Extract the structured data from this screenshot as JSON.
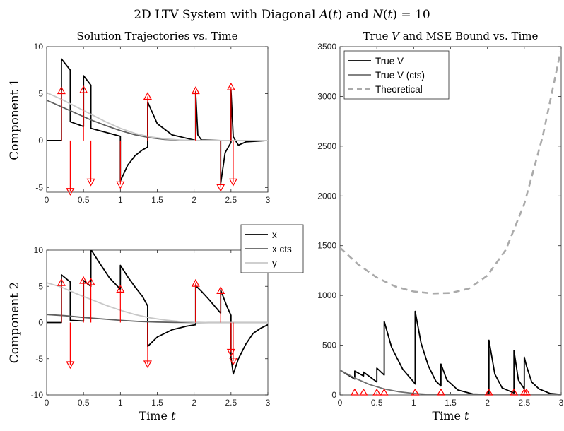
{
  "figure_title": "2D LTV System with Diagonal A(t) and N(t) = 10",
  "colors": {
    "x": "#000000",
    "x_cts": "#606060",
    "y": "#c8c8c8",
    "impulse": "#ff0000",
    "theoretical": "#aaaaaa",
    "true_v": "#000000",
    "true_v_cts": "#707070"
  },
  "chart_data": [
    {
      "id": "c1",
      "type": "line",
      "title": "Solution Trajectories vs. Time",
      "xlabel": "",
      "ylabel": "Component 1",
      "xlim": [
        0,
        3
      ],
      "ylim": [
        -5.5,
        10
      ],
      "xticks": [
        "0",
        "0.5",
        "1",
        "1.5",
        "2",
        "2.5",
        "3"
      ],
      "yticks": [
        "-5",
        "0",
        "5",
        "10"
      ],
      "grid": false,
      "series": [
        {
          "key": "x",
          "style": "x",
          "points": [
            [
              0,
              0
            ],
            [
              0.2,
              0
            ],
            [
              0.2,
              8.7
            ],
            [
              0.32,
              7.5
            ],
            [
              0.32,
              2.0
            ],
            [
              0.5,
              1.5
            ],
            [
              0.5,
              6.9
            ],
            [
              0.6,
              5.9
            ],
            [
              0.6,
              1.3
            ],
            [
              1.0,
              0.45
            ],
            [
              1.0,
              -4.3
            ],
            [
              1.1,
              -2.6
            ],
            [
              1.2,
              -1.6
            ],
            [
              1.3,
              -1.0
            ],
            [
              1.37,
              -0.7
            ],
            [
              1.37,
              4.1
            ],
            [
              1.5,
              1.8
            ],
            [
              1.7,
              0.6
            ],
            [
              2.0,
              0.05
            ],
            [
              2.02,
              0
            ],
            [
              2.02,
              5.2
            ],
            [
              2.05,
              0.6
            ],
            [
              2.1,
              0.05
            ],
            [
              2.36,
              0
            ],
            [
              2.36,
              -4.6
            ],
            [
              2.42,
              -1.3
            ],
            [
              2.5,
              -0.2
            ],
            [
              2.5,
              5.4
            ],
            [
              2.53,
              0.4
            ],
            [
              2.6,
              -0.5
            ],
            [
              2.7,
              -0.15
            ],
            [
              3.0,
              0
            ]
          ]
        },
        {
          "key": "x_cts",
          "style": "x_cts",
          "points": [
            [
              0,
              4.3
            ],
            [
              0.2,
              3.6
            ],
            [
              0.4,
              2.9
            ],
            [
              0.6,
              2.2
            ],
            [
              0.8,
              1.6
            ],
            [
              1.0,
              1.05
            ],
            [
              1.2,
              0.6
            ],
            [
              1.4,
              0.3
            ],
            [
              1.6,
              0.12
            ],
            [
              1.8,
              0.04
            ],
            [
              2.0,
              0
            ],
            [
              3.0,
              0
            ]
          ]
        },
        {
          "key": "y",
          "style": "y",
          "points": [
            [
              0,
              5.1
            ],
            [
              0.2,
              4.4
            ],
            [
              0.4,
              3.6
            ],
            [
              0.6,
              2.8
            ],
            [
              0.8,
              2.0
            ],
            [
              1.0,
              1.3
            ],
            [
              1.2,
              0.75
            ],
            [
              1.4,
              0.4
            ],
            [
              1.6,
              0.18
            ],
            [
              1.8,
              0.06
            ],
            [
              2.0,
              0
            ],
            [
              3.0,
              0
            ]
          ]
        }
      ],
      "impulses": [
        {
          "t": 0.2,
          "v": 5.3
        },
        {
          "t": 0.32,
          "v": -5.4
        },
        {
          "t": 0.5,
          "v": 5.4
        },
        {
          "t": 0.6,
          "v": -4.4
        },
        {
          "t": 1.0,
          "v": -4.7
        },
        {
          "t": 1.37,
          "v": 4.7
        },
        {
          "t": 2.02,
          "v": 5.3
        },
        {
          "t": 2.36,
          "v": -5.0
        },
        {
          "t": 2.5,
          "v": 5.7
        },
        {
          "t": 2.53,
          "v": -4.4
        }
      ]
    },
    {
      "id": "c2",
      "type": "line",
      "title": "",
      "xlabel": "Time t",
      "ylabel": "Component 2",
      "xlim": [
        0,
        3
      ],
      "ylim": [
        -10,
        10
      ],
      "xticks": [
        "0",
        "0.5",
        "1",
        "1.5",
        "2",
        "2.5",
        "3"
      ],
      "yticks": [
        "-10",
        "-5",
        "0",
        "5",
        "10"
      ],
      "grid": false,
      "legend": {
        "placement": "top-right",
        "entries": [
          {
            "label": "x",
            "style": "x"
          },
          {
            "label": "x cts",
            "style": "x_cts"
          },
          {
            "label": "y",
            "style": "y"
          }
        ]
      },
      "series": [
        {
          "key": "x",
          "style": "x",
          "points": [
            [
              0,
              0
            ],
            [
              0.2,
              0
            ],
            [
              0.2,
              6.6
            ],
            [
              0.32,
              5.6
            ],
            [
              0.32,
              0.3
            ],
            [
              0.5,
              0.2
            ],
            [
              0.5,
              5.8
            ],
            [
              0.6,
              5.0
            ],
            [
              0.6,
              10.1
            ],
            [
              0.7,
              8.5
            ],
            [
              0.85,
              6.2
            ],
            [
              1.0,
              4.6
            ],
            [
              1.0,
              7.9
            ],
            [
              1.1,
              6.3
            ],
            [
              1.2,
              4.9
            ],
            [
              1.3,
              3.6
            ],
            [
              1.37,
              2.3
            ],
            [
              1.37,
              -3.3
            ],
            [
              1.5,
              -2.0
            ],
            [
              1.7,
              -1.0
            ],
            [
              1.9,
              -0.5
            ],
            [
              2.02,
              -0.3
            ],
            [
              2.02,
              5.1
            ],
            [
              2.1,
              4.3
            ],
            [
              2.2,
              3.2
            ],
            [
              2.3,
              2.0
            ],
            [
              2.36,
              1.3
            ],
            [
              2.36,
              4.5
            ],
            [
              2.45,
              2.1
            ],
            [
              2.5,
              1.0
            ],
            [
              2.5,
              -4.8
            ],
            [
              2.53,
              -7.1
            ],
            [
              2.6,
              -5.0
            ],
            [
              2.7,
              -3.0
            ],
            [
              2.8,
              -1.5
            ],
            [
              2.9,
              -0.8
            ],
            [
              3.0,
              -0.3
            ]
          ]
        },
        {
          "key": "x_cts",
          "style": "x_cts",
          "points": [
            [
              0,
              1.1
            ],
            [
              0.25,
              0.95
            ],
            [
              0.5,
              0.7
            ],
            [
              0.75,
              0.5
            ],
            [
              1.0,
              0.3
            ],
            [
              1.25,
              0.15
            ],
            [
              1.5,
              0.06
            ],
            [
              1.75,
              0.02
            ],
            [
              2.0,
              0
            ],
            [
              3.0,
              0
            ]
          ]
        },
        {
          "key": "y",
          "style": "y",
          "points": [
            [
              0,
              5.5
            ],
            [
              0.2,
              4.9
            ],
            [
              0.4,
              4.0
            ],
            [
              0.6,
              3.2
            ],
            [
              0.8,
              2.4
            ],
            [
              1.0,
              1.7
            ],
            [
              1.2,
              1.1
            ],
            [
              1.4,
              0.65
            ],
            [
              1.6,
              0.35
            ],
            [
              1.8,
              0.15
            ],
            [
              2.0,
              0.05
            ],
            [
              2.2,
              0
            ],
            [
              3.0,
              0
            ]
          ]
        }
      ],
      "impulses": [
        {
          "t": 0.2,
          "v": 5.5
        },
        {
          "t": 0.32,
          "v": -5.8
        },
        {
          "t": 0.5,
          "v": 5.8
        },
        {
          "t": 0.6,
          "v": 5.6
        },
        {
          "t": 1.0,
          "v": 4.6
        },
        {
          "t": 1.37,
          "v": -5.7
        },
        {
          "t": 2.02,
          "v": 5.4
        },
        {
          "t": 2.36,
          "v": 4.4
        },
        {
          "t": 2.5,
          "v": -4.1
        },
        {
          "t": 2.53,
          "v": -5.3
        }
      ]
    },
    {
      "id": "c3",
      "type": "line",
      "title": "True V and MSE Bound vs. Time",
      "xlabel": "Time t",
      "ylabel": "",
      "xlim": [
        0,
        3
      ],
      "ylim": [
        0,
        3500
      ],
      "xticks": [
        "0",
        "0.5",
        "1",
        "1.5",
        "2",
        "2.5",
        "3"
      ],
      "yticks": [
        "0",
        "500",
        "1000",
        "1500",
        "2000",
        "2500",
        "3000",
        "3500"
      ],
      "grid": false,
      "legend": {
        "placement": "top-left",
        "entries": [
          {
            "label": "True V",
            "style": "true_v"
          },
          {
            "label": "True V (cts)",
            "style": "true_v_cts"
          },
          {
            "label": "Theoretical",
            "style": "theoretical"
          }
        ]
      },
      "series": [
        {
          "key": "theoretical",
          "style": "theoretical",
          "points": [
            [
              0,
              1480
            ],
            [
              0.25,
              1310
            ],
            [
              0.5,
              1180
            ],
            [
              0.75,
              1090
            ],
            [
              1.0,
              1040
            ],
            [
              1.25,
              1020
            ],
            [
              1.5,
              1025
            ],
            [
              1.75,
              1070
            ],
            [
              2.0,
              1200
            ],
            [
              2.25,
              1460
            ],
            [
              2.5,
              1920
            ],
            [
              2.75,
              2600
            ],
            [
              3.0,
              3480
            ]
          ]
        },
        {
          "key": "true_v",
          "style": "true_v",
          "points": [
            [
              0,
              250
            ],
            [
              0.2,
              160
            ],
            [
              0.2,
              240
            ],
            [
              0.32,
              190
            ],
            [
              0.32,
              230
            ],
            [
              0.5,
              130
            ],
            [
              0.5,
              270
            ],
            [
              0.6,
              200
            ],
            [
              0.6,
              740
            ],
            [
              0.7,
              480
            ],
            [
              0.85,
              260
            ],
            [
              1.0,
              130
            ],
            [
              1.02,
              110
            ],
            [
              1.02,
              840
            ],
            [
              1.1,
              520
            ],
            [
              1.2,
              290
            ],
            [
              1.3,
              140
            ],
            [
              1.37,
              90
            ],
            [
              1.37,
              310
            ],
            [
              1.45,
              150
            ],
            [
              1.6,
              50
            ],
            [
              1.8,
              10
            ],
            [
              2.02,
              5
            ],
            [
              2.02,
              550
            ],
            [
              2.1,
              210
            ],
            [
              2.2,
              70
            ],
            [
              2.36,
              20
            ],
            [
              2.36,
              445
            ],
            [
              2.42,
              150
            ],
            [
              2.5,
              60
            ],
            [
              2.5,
              380
            ],
            [
              2.53,
              290
            ],
            [
              2.6,
              130
            ],
            [
              2.7,
              60
            ],
            [
              2.85,
              15
            ],
            [
              3.0,
              5
            ]
          ]
        },
        {
          "key": "true_v_cts",
          "style": "true_v_cts",
          "points": [
            [
              0,
              250
            ],
            [
              0.2,
              170
            ],
            [
              0.4,
              105
            ],
            [
              0.6,
              60
            ],
            [
              0.8,
              32
            ],
            [
              1.0,
              15
            ],
            [
              1.2,
              6
            ],
            [
              1.4,
              2
            ],
            [
              1.6,
              0
            ],
            [
              3.0,
              0
            ]
          ]
        }
      ],
      "markers": [
        0.2,
        0.32,
        0.5,
        0.6,
        1.02,
        1.37,
        2.02,
        2.36,
        2.5,
        2.53
      ]
    }
  ]
}
